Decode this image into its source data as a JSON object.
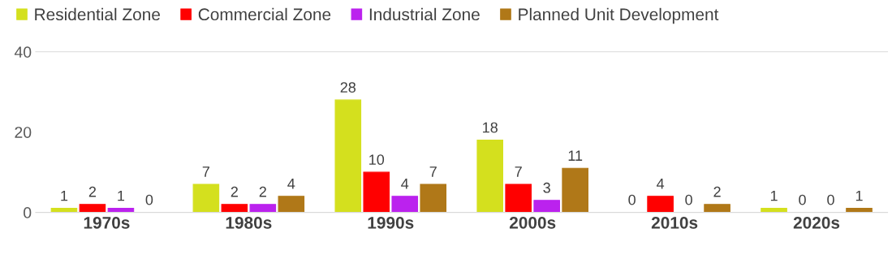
{
  "chart_data": {
    "type": "bar",
    "categories": [
      "1970s",
      "1980s",
      "1990s",
      "2000s",
      "2010s",
      "2020s"
    ],
    "series": [
      {
        "name": "Residential Zone",
        "color": "#d4e01e",
        "values": [
          1,
          7,
          28,
          18,
          0,
          1
        ]
      },
      {
        "name": "Commercial Zone",
        "color": "#ff0000",
        "values": [
          2,
          2,
          10,
          7,
          4,
          0
        ]
      },
      {
        "name": "Industrial Zone",
        "color": "#bb22ee",
        "values": [
          1,
          2,
          4,
          3,
          0,
          0
        ]
      },
      {
        "name": "Planned Unit Development",
        "color": "#b07818",
        "values": [
          0,
          4,
          7,
          11,
          2,
          1
        ]
      }
    ],
    "ylim": [
      0,
      40
    ],
    "yticks": [
      0,
      20,
      40
    ],
    "grid": false,
    "legend": "top",
    "data_labels": true
  }
}
